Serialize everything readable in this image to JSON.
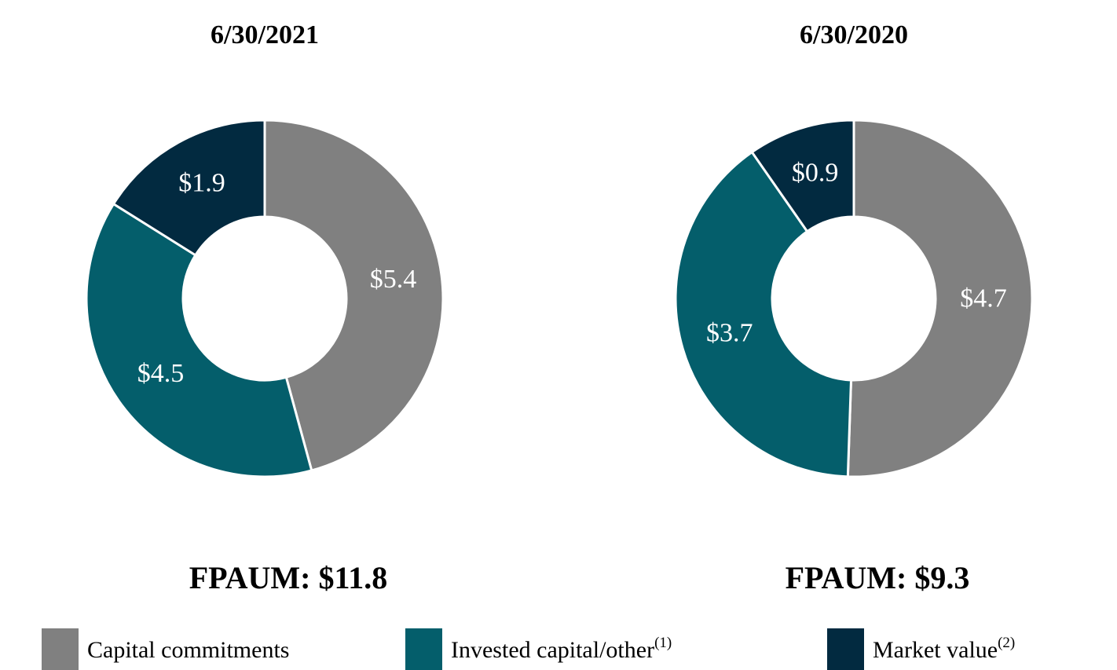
{
  "chart_data": [
    {
      "type": "pie",
      "title": "6/30/2021",
      "values": [
        5.4,
        4.5,
        1.9
      ],
      "value_labels": [
        "$5.4",
        "$4.5",
        "$1.9"
      ],
      "annotation": "FPAUM: $11.8"
    },
    {
      "type": "pie",
      "title": "6/30/2020",
      "values": [
        4.7,
        3.7,
        0.9
      ],
      "value_labels": [
        "$4.7",
        "$3.7",
        "$0.9"
      ],
      "annotation": "FPAUM: $9.3"
    }
  ],
  "legend": {
    "items": [
      {
        "label": "Capital commitments",
        "color": "#808080"
      },
      {
        "label": "Invested capital/other",
        "note": "(1)",
        "color": "#045e6b"
      },
      {
        "label": "Market value",
        "note": "(2)",
        "color": "#022a40"
      }
    ]
  }
}
